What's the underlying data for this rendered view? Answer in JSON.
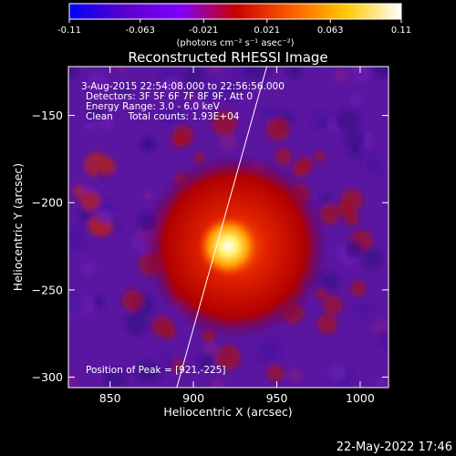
{
  "chart_data": {
    "type": "heatmap",
    "title": "Reconstructed RHESSI Image",
    "xlabel": "Heliocentric X (arcsec)",
    "ylabel": "Heliocentric Y (arcsec)",
    "xlim": [
      825,
      1017
    ],
    "ylim": [
      -306,
      -122
    ],
    "xticks": [
      850,
      900,
      950,
      1000
    ],
    "yticks": [
      -150,
      -200,
      -250,
      -300
    ],
    "annotations": [
      "3-Aug-2015 22:54:08.000 to 22:56:56.000",
      "Detectors: 3F 5F 6F 7F 8F 9F, Att 0",
      "Energy Range: 3.0 - 6.0 keV",
      "Clean     Total counts: 1.93E+04"
    ],
    "peak_label": "Position of Peak = [921,-225]",
    "peak": {
      "x": 921,
      "y": -225
    },
    "colorbar": {
      "ticks": [
        "-0.11",
        "-0.063",
        "-0.021",
        "0.021",
        "0.063",
        "0.11"
      ],
      "range": [
        -0.11,
        0.11
      ],
      "unit_label": "(photons cm⁻² s⁻¹ asec⁻²)",
      "colors": [
        "#0000ff",
        "#5a00c8",
        "#8000ff",
        "#c80000",
        "#ff5a00",
        "#ffc800",
        "#ffffff"
      ]
    },
    "limb_line": [
      {
        "x": 890,
        "y": -306
      },
      {
        "x": 944,
        "y": -122
      }
    ],
    "sources": [
      {
        "name": "core",
        "x": 921,
        "y": -225,
        "radius_arcsec": 8,
        "value": 0.11
      },
      {
        "name": "halo",
        "x": 925,
        "y": -225,
        "radius_arcsec": 45,
        "value": 0.04
      }
    ]
  },
  "timestamp": "22-May-2022 17:46"
}
